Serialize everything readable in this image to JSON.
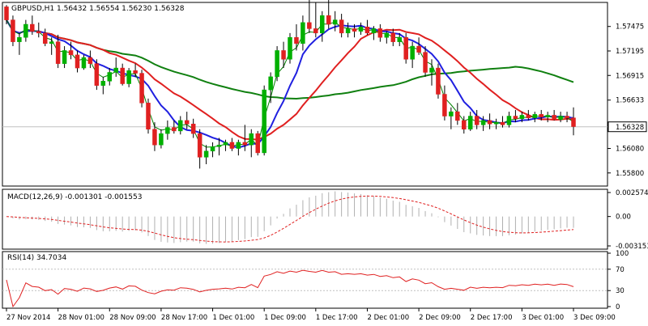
{
  "chart_data": [
    {
      "type": "candlestick",
      "title": "GBPUSD,H1  1.56432 1.56554 1.56230 1.56328",
      "price_labels": [
        "1.57475",
        "1.57195",
        "1.56915",
        "1.56633",
        "1.56080",
        "1.55800"
      ],
      "price_values": [
        1.57475,
        1.57195,
        1.56915,
        1.56633,
        1.5608,
        1.558
      ],
      "current_price_label": "1.56328",
      "current_price": 1.56328,
      "ylim": [
        1.5565,
        1.5775
      ],
      "x_labels": [
        "27 Nov 2014",
        "28 Nov 01:00",
        "28 Nov 09:00",
        "28 Nov 17:00",
        "1 Dec 01:00",
        "1 Dec 09:00",
        "1 Dec 17:00",
        "2 Dec 01:00",
        "2 Dec 09:00",
        "2 Dec 17:00",
        "3 Dec 01:00",
        "3 Dec 09:00"
      ],
      "x_label_bars": [
        0,
        8,
        16,
        24,
        32,
        40,
        48,
        56,
        64,
        72,
        80,
        88
      ],
      "colors": {
        "up": "#00b000",
        "down": "#e02020",
        "ma_fast": "#2020e0",
        "ma_mid": "#e02020",
        "ma_slow": "#108010",
        "ma_thin": "#008000",
        "grid": "#c0c0c0"
      },
      "candles": [
        [
          1.577,
          1.5772,
          1.575,
          1.5755
        ],
        [
          1.5755,
          1.576,
          1.5725,
          1.573
        ],
        [
          1.573,
          1.574,
          1.5715,
          1.5735
        ],
        [
          1.5735,
          1.5755,
          1.573,
          1.575
        ],
        [
          1.575,
          1.576,
          1.5738,
          1.5742
        ],
        [
          1.5742,
          1.5752,
          1.5735,
          1.574
        ],
        [
          1.574,
          1.5745,
          1.5725,
          1.5728
        ],
        [
          1.5728,
          1.5735,
          1.5715,
          1.573
        ],
        [
          1.573,
          1.5738,
          1.57,
          1.5705
        ],
        [
          1.5705,
          1.5725,
          1.57,
          1.572
        ],
        [
          1.572,
          1.573,
          1.571,
          1.5715
        ],
        [
          1.5715,
          1.572,
          1.5695,
          1.57
        ],
        [
          1.57,
          1.5715,
          1.5698,
          1.5712
        ],
        [
          1.5712,
          1.572,
          1.57,
          1.5705
        ],
        [
          1.5705,
          1.571,
          1.5675,
          1.568
        ],
        [
          1.568,
          1.569,
          1.567,
          1.5685
        ],
        [
          1.5685,
          1.57,
          1.568,
          1.5695
        ],
        [
          1.5695,
          1.5712,
          1.569,
          1.57
        ],
        [
          1.57,
          1.5705,
          1.568,
          1.5682
        ],
        [
          1.5682,
          1.57,
          1.5678,
          1.5697
        ],
        [
          1.5697,
          1.5705,
          1.569,
          1.5694
        ],
        [
          1.5694,
          1.5698,
          1.5655,
          1.566
        ],
        [
          1.566,
          1.5665,
          1.5625,
          1.563
        ],
        [
          1.563,
          1.5638,
          1.5605,
          1.5612
        ],
        [
          1.5612,
          1.563,
          1.5608,
          1.5625
        ],
        [
          1.5625,
          1.564,
          1.5618,
          1.5632
        ],
        [
          1.5632,
          1.564,
          1.5625,
          1.5628
        ],
        [
          1.5628,
          1.5645,
          1.5624,
          1.564
        ],
        [
          1.564,
          1.565,
          1.563,
          1.5636
        ],
        [
          1.5636,
          1.5642,
          1.562,
          1.5625
        ],
        [
          1.5625,
          1.563,
          1.5585,
          1.5598
        ],
        [
          1.5598,
          1.5612,
          1.559,
          1.5605
        ],
        [
          1.5605,
          1.5615,
          1.5598,
          1.561
        ],
        [
          1.561,
          1.562,
          1.56,
          1.5612
        ],
        [
          1.5612,
          1.5618,
          1.5605,
          1.5615
        ],
        [
          1.5615,
          1.562,
          1.5605,
          1.5608
        ],
        [
          1.5608,
          1.5618,
          1.56,
          1.5615
        ],
        [
          1.5615,
          1.5635,
          1.5605,
          1.5612
        ],
        [
          1.5612,
          1.563,
          1.5598,
          1.5625
        ],
        [
          1.5625,
          1.5628,
          1.56,
          1.5603
        ],
        [
          1.5603,
          1.568,
          1.56,
          1.5675
        ],
        [
          1.5675,
          1.5695,
          1.566,
          1.569
        ],
        [
          1.569,
          1.5725,
          1.5685,
          1.572
        ],
        [
          1.572,
          1.573,
          1.57,
          1.571
        ],
        [
          1.571,
          1.574,
          1.5705,
          1.5735
        ],
        [
          1.5735,
          1.575,
          1.572,
          1.5728
        ],
        [
          1.5728,
          1.576,
          1.572,
          1.5752
        ],
        [
          1.5752,
          1.578,
          1.574,
          1.5745
        ],
        [
          1.5745,
          1.5775,
          1.5735,
          1.574
        ],
        [
          1.574,
          1.5765,
          1.573,
          1.576
        ],
        [
          1.576,
          1.5778,
          1.5745,
          1.575
        ],
        [
          1.575,
          1.5765,
          1.5742,
          1.5755
        ],
        [
          1.5755,
          1.5762,
          1.5735,
          1.574
        ],
        [
          1.574,
          1.5752,
          1.5735,
          1.5745
        ],
        [
          1.5745,
          1.575,
          1.5735,
          1.5742
        ],
        [
          1.5742,
          1.5752,
          1.5738,
          1.5747
        ],
        [
          1.5747,
          1.5755,
          1.5738,
          1.574
        ],
        [
          1.574,
          1.5748,
          1.5732,
          1.5745
        ],
        [
          1.5745,
          1.575,
          1.573,
          1.5735
        ],
        [
          1.5735,
          1.5742,
          1.5728,
          1.574
        ],
        [
          1.574,
          1.5745,
          1.5725,
          1.573
        ],
        [
          1.573,
          1.574,
          1.5725,
          1.5735
        ],
        [
          1.5735,
          1.574,
          1.5705,
          1.571
        ],
        [
          1.571,
          1.573,
          1.57,
          1.5725
        ],
        [
          1.5725,
          1.5735,
          1.5715,
          1.5718
        ],
        [
          1.5718,
          1.5725,
          1.569,
          1.5695
        ],
        [
          1.5695,
          1.571,
          1.568,
          1.57
        ],
        [
          1.57,
          1.5705,
          1.5665,
          1.567
        ],
        [
          1.567,
          1.568,
          1.564,
          1.5645
        ],
        [
          1.5645,
          1.5655,
          1.563,
          1.565
        ],
        [
          1.565,
          1.566,
          1.5635,
          1.564
        ],
        [
          1.564,
          1.5645,
          1.5625,
          1.563
        ],
        [
          1.563,
          1.565,
          1.5628,
          1.5645
        ],
        [
          1.5645,
          1.5652,
          1.563,
          1.5635
        ],
        [
          1.5635,
          1.5645,
          1.5628,
          1.564
        ],
        [
          1.564,
          1.5648,
          1.563,
          1.5636
        ],
        [
          1.5636,
          1.5642,
          1.563,
          1.5638
        ],
        [
          1.5638,
          1.5645,
          1.5632,
          1.5635
        ],
        [
          1.5635,
          1.565,
          1.5632,
          1.5645
        ],
        [
          1.5645,
          1.5652,
          1.5638,
          1.5642
        ],
        [
          1.5642,
          1.565,
          1.5638,
          1.5646
        ],
        [
          1.5646,
          1.5652,
          1.564,
          1.5643
        ],
        [
          1.5643,
          1.565,
          1.5638,
          1.5647
        ],
        [
          1.5647,
          1.5652,
          1.564,
          1.5644
        ],
        [
          1.5644,
          1.565,
          1.5638,
          1.5646
        ],
        [
          1.5646,
          1.5652,
          1.564,
          1.5641
        ],
        [
          1.5641,
          1.565,
          1.5638,
          1.5645
        ],
        [
          1.5645,
          1.565,
          1.5638,
          1.5643
        ],
        [
          1.5643,
          1.5655,
          1.5623,
          1.5633
        ]
      ]
    },
    {
      "type": "histogram",
      "title": "MACD(12,26,9) -0.001301 -0.001553",
      "axis_labels": [
        "0.002574",
        "0.00",
        "-0.003153"
      ],
      "axis_values": [
        0.002574,
        0.0,
        -0.003153
      ]
    },
    {
      "type": "line",
      "title": "RSI(14) 34.7034",
      "axis_labels": [
        "100",
        "70",
        "30",
        "0"
      ],
      "axis_values": [
        100,
        70,
        30,
        0
      ],
      "levels": [
        70,
        30
      ],
      "ylim": [
        0,
        100
      ]
    }
  ]
}
